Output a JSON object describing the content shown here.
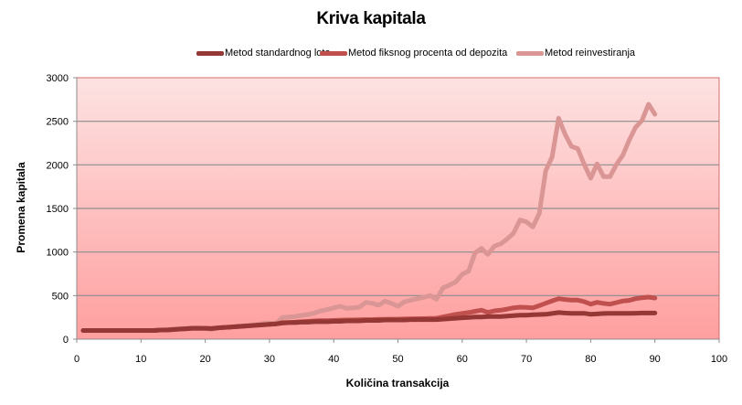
{
  "chart_data": {
    "type": "line",
    "title": "Kriva kapitala",
    "xlabel": "Količina transakcija",
    "ylabel": "Promena kapitala",
    "xlim": [
      0,
      100
    ],
    "ylim": [
      0,
      3000
    ],
    "x_ticks": [
      0,
      10,
      20,
      30,
      40,
      50,
      60,
      70,
      80,
      90,
      100
    ],
    "y_ticks": [
      0,
      500,
      1000,
      1500,
      2000,
      2500,
      3000
    ],
    "grid": "horizontal",
    "legend_position": "top",
    "x": [
      1,
      2,
      3,
      4,
      5,
      6,
      7,
      8,
      9,
      10,
      11,
      12,
      13,
      14,
      15,
      16,
      17,
      18,
      19,
      20,
      21,
      22,
      23,
      24,
      25,
      26,
      27,
      28,
      29,
      30,
      31,
      32,
      33,
      34,
      35,
      36,
      37,
      38,
      39,
      40,
      41,
      42,
      43,
      44,
      45,
      46,
      47,
      48,
      49,
      50,
      51,
      52,
      53,
      54,
      55,
      56,
      57,
      58,
      59,
      60,
      61,
      62,
      63,
      64,
      65,
      66,
      67,
      68,
      69,
      70,
      71,
      72,
      73,
      74,
      75,
      76,
      77,
      78,
      79,
      80,
      81,
      82,
      83,
      84,
      85,
      86,
      87,
      88,
      89,
      90
    ],
    "series": [
      {
        "name": "Metod standardnog lota",
        "color": "#953735",
        "values": [
          100,
          100,
          100,
          100,
          100,
          100,
          100,
          100,
          100,
          100,
          100,
          100,
          105,
          105,
          110,
          115,
          120,
          125,
          125,
          125,
          122,
          130,
          135,
          140,
          145,
          150,
          155,
          160,
          165,
          170,
          175,
          185,
          190,
          190,
          195,
          195,
          200,
          200,
          200,
          205,
          205,
          210,
          210,
          210,
          215,
          215,
          215,
          220,
          220,
          220,
          220,
          225,
          225,
          225,
          225,
          225,
          230,
          235,
          240,
          245,
          250,
          255,
          255,
          260,
          260,
          260,
          265,
          270,
          275,
          275,
          280,
          283,
          285,
          295,
          305,
          300,
          297,
          297,
          297,
          285,
          290,
          295,
          297,
          297,
          297,
          297,
          298,
          300,
          300,
          300
        ]
      },
      {
        "name": "Metod fiksnog procenta od depozita",
        "color": "#c0504d",
        "values": [
          100,
          100,
          100,
          100,
          100,
          100,
          100,
          100,
          100,
          100,
          100,
          100,
          105,
          105,
          110,
          115,
          120,
          125,
          125,
          125,
          122,
          130,
          135,
          140,
          145,
          150,
          155,
          160,
          165,
          170,
          175,
          190,
          192,
          195,
          200,
          205,
          210,
          212,
          213,
          215,
          218,
          220,
          220,
          222,
          225,
          225,
          228,
          228,
          230,
          230,
          232,
          234,
          235,
          236,
          238,
          240,
          255,
          270,
          285,
          295,
          305,
          320,
          332,
          307,
          325,
          332,
          345,
          360,
          367,
          365,
          360,
          385,
          412,
          440,
          465,
          455,
          448,
          448,
          430,
          402,
          423,
          410,
          402,
          420,
          437,
          445,
          465,
          475,
          483,
          472
        ]
      },
      {
        "name": "Metod reinvestiranja",
        "color": "#d99694",
        "values": [
          100,
          100,
          100,
          100,
          100,
          100,
          100,
          100,
          100,
          100,
          100,
          100,
          105,
          110,
          115,
          120,
          126,
          130,
          130,
          125,
          110,
          130,
          135,
          140,
          150,
          155,
          160,
          168,
          180,
          185,
          178,
          248,
          255,
          260,
          273,
          283,
          300,
          325,
          340,
          360,
          378,
          353,
          360,
          367,
          423,
          412,
          390,
          437,
          410,
          378,
          430,
          448,
          465,
          480,
          500,
          458,
          587,
          620,
          657,
          745,
          780,
          990,
          1042,
          972,
          1067,
          1094,
          1150,
          1217,
          1367,
          1346,
          1287,
          1444,
          1933,
          2091,
          2535,
          2353,
          2213,
          2185,
          2004,
          1846,
          2011,
          1864,
          1864,
          2004,
          2109,
          2284,
          2431,
          2510,
          2696,
          2580
        ]
      }
    ]
  },
  "chart": {
    "title": "Kriva kapitala",
    "xlabel": "Količina transakcija",
    "ylabel": "Promena kapitala",
    "legend": [
      {
        "label": "Metod standardnog lota",
        "color": "#953735"
      },
      {
        "label": "Metod fiksnog procenta od depozita",
        "color": "#c0504d"
      },
      {
        "label": "Metod reinvestiranja",
        "color": "#d99694"
      }
    ],
    "x_tick_labels": [
      "0",
      "10",
      "20",
      "30",
      "40",
      "50",
      "60",
      "70",
      "80",
      "90",
      "100"
    ],
    "y_tick_labels": [
      "0",
      "500",
      "1000",
      "1500",
      "2000",
      "2500",
      "3000"
    ]
  }
}
